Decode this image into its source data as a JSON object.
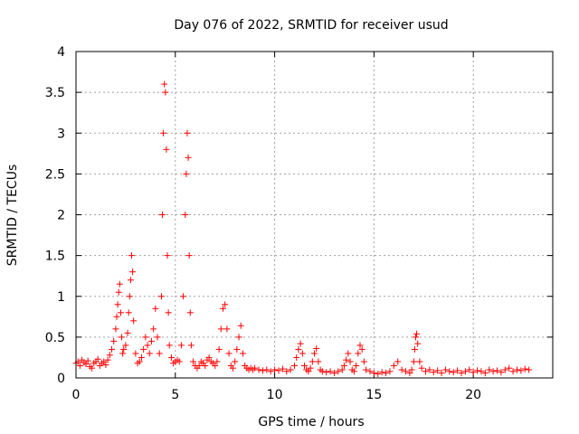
{
  "chart_data": {
    "type": "scatter",
    "title": "Day 076 of 2022, SRMTID for receiver usud",
    "xlabel": "GPS time / hours",
    "ylabel": "SRMTID / TECUs",
    "xlim": [
      0,
      24
    ],
    "ylim": [
      0,
      4
    ],
    "xticks": [
      0,
      5,
      10,
      15,
      20
    ],
    "xtick_labels": [
      "0",
      "5",
      "10",
      "15",
      "20"
    ],
    "yticks": [
      0,
      0.5,
      1,
      1.5,
      2,
      2.5,
      3,
      3.5,
      4
    ],
    "ytick_labels": [
      "0",
      "0.5",
      "1",
      "1.5",
      "2",
      "2.5",
      "3",
      "3.5",
      "4"
    ],
    "grid": true,
    "marker": "+",
    "color": "#ff0000",
    "series": [
      {
        "name": "SRMTID",
        "x": [
          0.0,
          0.1,
          0.2,
          0.3,
          0.4,
          0.5,
          0.6,
          0.7,
          0.8,
          0.9,
          1.0,
          1.1,
          1.2,
          1.3,
          1.4,
          1.5,
          1.6,
          1.7,
          1.8,
          1.9,
          2.0,
          2.05,
          2.1,
          2.15,
          2.2,
          2.25,
          2.3,
          2.35,
          2.4,
          2.5,
          2.6,
          2.65,
          2.7,
          2.75,
          2.8,
          2.85,
          2.9,
          3.0,
          3.1,
          3.2,
          3.3,
          3.4,
          3.5,
          3.6,
          3.7,
          3.8,
          3.9,
          4.0,
          4.1,
          4.2,
          4.3,
          4.35,
          4.4,
          4.45,
          4.5,
          4.55,
          4.6,
          4.65,
          4.7,
          4.8,
          4.9,
          5.0,
          5.1,
          5.2,
          5.3,
          5.4,
          5.5,
          5.55,
          5.6,
          5.65,
          5.7,
          5.75,
          5.8,
          5.9,
          6.0,
          6.1,
          6.2,
          6.3,
          6.4,
          6.5,
          6.6,
          6.7,
          6.8,
          6.9,
          7.0,
          7.1,
          7.2,
          7.3,
          7.4,
          7.5,
          7.6,
          7.7,
          7.8,
          7.9,
          8.0,
          8.1,
          8.2,
          8.3,
          8.4,
          8.5,
          8.6,
          8.7,
          8.8,
          8.9,
          9.0,
          9.2,
          9.4,
          9.6,
          9.8,
          10.0,
          10.2,
          10.4,
          10.6,
          10.8,
          11.0,
          11.1,
          11.2,
          11.3,
          11.4,
          11.5,
          11.6,
          11.7,
          11.8,
          11.9,
          12.0,
          12.1,
          12.2,
          12.3,
          12.4,
          12.6,
          12.8,
          13.0,
          13.2,
          13.4,
          13.5,
          13.6,
          13.7,
          13.8,
          13.9,
          14.0,
          14.1,
          14.2,
          14.3,
          14.4,
          14.5,
          14.6,
          14.8,
          15.0,
          15.2,
          15.4,
          15.6,
          15.8,
          16.0,
          16.2,
          16.4,
          16.6,
          16.8,
          16.9,
          17.0,
          17.05,
          17.1,
          17.15,
          17.2,
          17.3,
          17.4,
          17.6,
          17.8,
          18.0,
          18.2,
          18.4,
          18.6,
          18.8,
          19.0,
          19.2,
          19.4,
          19.6,
          19.8,
          20.0,
          20.2,
          20.4,
          20.6,
          20.8,
          21.0,
          21.2,
          21.4,
          21.6,
          21.8,
          22.0,
          22.2,
          22.4,
          22.6,
          22.8
        ],
        "y": [
          0.18,
          0.2,
          0.15,
          0.22,
          0.19,
          0.17,
          0.21,
          0.14,
          0.12,
          0.18,
          0.2,
          0.23,
          0.15,
          0.18,
          0.2,
          0.16,
          0.22,
          0.28,
          0.35,
          0.45,
          0.6,
          0.75,
          0.9,
          1.05,
          1.15,
          0.8,
          0.5,
          0.3,
          0.35,
          0.4,
          0.55,
          0.8,
          1.0,
          1.2,
          1.5,
          1.3,
          0.7,
          0.3,
          0.18,
          0.2,
          0.25,
          0.35,
          0.5,
          0.4,
          0.3,
          0.45,
          0.6,
          0.85,
          0.5,
          0.3,
          1.0,
          2.0,
          3.0,
          3.6,
          3.5,
          2.8,
          1.5,
          0.8,
          0.4,
          0.25,
          0.18,
          0.2,
          0.22,
          0.2,
          0.4,
          1.0,
          2.0,
          2.5,
          3.0,
          2.7,
          1.5,
          0.8,
          0.4,
          0.2,
          0.15,
          0.12,
          0.15,
          0.2,
          0.18,
          0.15,
          0.22,
          0.25,
          0.2,
          0.18,
          0.15,
          0.2,
          0.35,
          0.6,
          0.85,
          0.9,
          0.6,
          0.3,
          0.15,
          0.12,
          0.2,
          0.35,
          0.5,
          0.64,
          0.3,
          0.15,
          0.12,
          0.1,
          0.12,
          0.1,
          0.12,
          0.1,
          0.09,
          0.1,
          0.08,
          0.1,
          0.09,
          0.11,
          0.08,
          0.1,
          0.15,
          0.25,
          0.35,
          0.42,
          0.3,
          0.15,
          0.1,
          0.08,
          0.12,
          0.2,
          0.3,
          0.36,
          0.2,
          0.1,
          0.08,
          0.07,
          0.08,
          0.06,
          0.08,
          0.1,
          0.15,
          0.22,
          0.3,
          0.2,
          0.1,
          0.08,
          0.15,
          0.3,
          0.4,
          0.35,
          0.2,
          0.1,
          0.08,
          0.06,
          0.05,
          0.07,
          0.06,
          0.08,
          0.15,
          0.2,
          0.1,
          0.08,
          0.06,
          0.1,
          0.2,
          0.35,
          0.5,
          0.54,
          0.42,
          0.2,
          0.12,
          0.08,
          0.1,
          0.07,
          0.09,
          0.06,
          0.1,
          0.08,
          0.07,
          0.09,
          0.06,
          0.08,
          0.1,
          0.07,
          0.09,
          0.08,
          0.06,
          0.1,
          0.08,
          0.09,
          0.07,
          0.1,
          0.12,
          0.08,
          0.1,
          0.09,
          0.11,
          0.1
        ]
      }
    ]
  }
}
